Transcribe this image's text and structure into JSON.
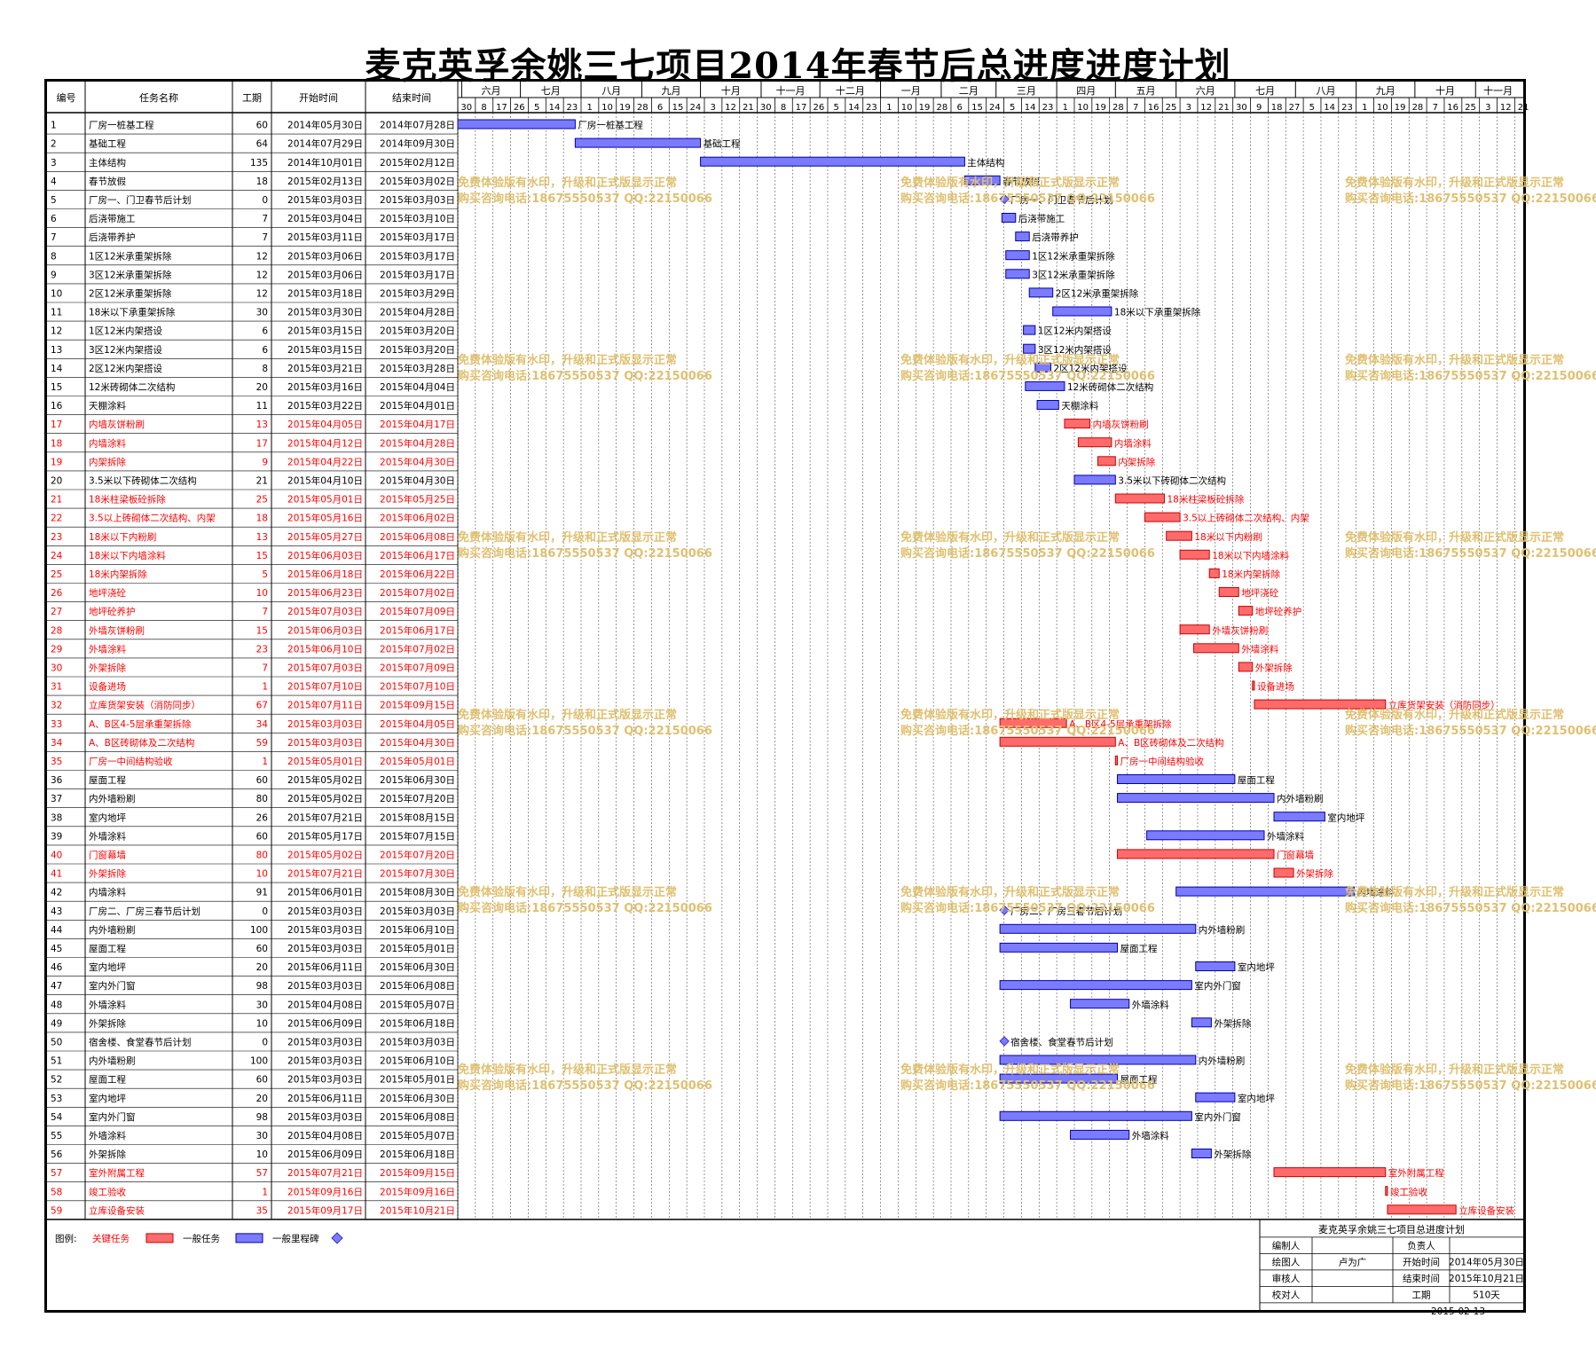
{
  "title": "麦克英孚余姚三七项目2014年春节后总进度进度计划",
  "columns": [
    "编号",
    "任务名称",
    "工期",
    "开始时间",
    "结束时间"
  ],
  "months": [
    "六月",
    "七月",
    "八月",
    "九月",
    "十月",
    "十一月",
    "十二月",
    "一月",
    "二月",
    "三月",
    "四月",
    "五月",
    "六月",
    "七月",
    "八月",
    "九月",
    "十月",
    "十一月"
  ],
  "days": [
    "30",
    "8",
    "17",
    "26",
    "5",
    "14",
    "23",
    "1",
    "10",
    "19",
    "28",
    "6",
    "15",
    "24",
    "3",
    "12",
    "21",
    "30",
    "8",
    "17",
    "26",
    "5",
    "14",
    "23",
    "1",
    "10",
    "19",
    "28",
    "6",
    "15",
    "24",
    "5",
    "14",
    "23",
    "1",
    "10",
    "19",
    "28",
    "7",
    "16",
    "25",
    "3",
    "12",
    "21",
    "30",
    "9",
    "18",
    "27",
    "5",
    "14",
    "23",
    "1",
    "10",
    "19",
    "28",
    "7",
    "16",
    "25",
    "3",
    "12",
    "21"
  ],
  "colors": {
    "critical": "#ff6b6b",
    "normal": "#7b7bff",
    "critical_text": "#ff0000",
    "normal_line": "#0000cc",
    "watermark": "#e0c070"
  },
  "watermark": [
    "免费体验版有水印，升级和正式版显示正常",
    "购买咨询电话:18675550537 QQ:22150066"
  ],
  "chart_data": {
    "type": "gantt",
    "x_range": [
      "2014-05-30",
      "2015-11-24"
    ],
    "tasks": [
      {
        "id": "1",
        "name": "厂房一桩基工程",
        "dur": "60",
        "start": "2014年05月30日",
        "end": "2014年07月28日",
        "s": "2014-05-30",
        "e": "2014-07-28",
        "crit": false,
        "label": "厂房一桩基工程"
      },
      {
        "id": "2",
        "name": "基础工程",
        "dur": "64",
        "start": "2014年07月29日",
        "end": "2014年09月30日",
        "s": "2014-07-29",
        "e": "2014-09-30",
        "crit": false,
        "label": "基础工程"
      },
      {
        "id": "3",
        "name": "主体结构",
        "dur": "135",
        "start": "2014年10月01日",
        "end": "2015年02月12日",
        "s": "2014-10-01",
        "e": "2015-02-12",
        "crit": false,
        "label": "主体结构"
      },
      {
        "id": "4",
        "name": "春节放假",
        "dur": "18",
        "start": "2015年02月13日",
        "end": "2015年03月02日",
        "s": "2015-02-13",
        "e": "2015-03-02",
        "crit": false,
        "label": "春节放假"
      },
      {
        "id": "5",
        "name": "厂房一、门卫春节后计划",
        "dur": "0",
        "start": "2015年03月03日",
        "end": "2015年03月03日",
        "s": "2015-03-03",
        "e": "2015-03-03",
        "crit": false,
        "label": "厂房一、门卫春节后计划"
      },
      {
        "id": "6",
        "name": "后浇带施工",
        "dur": "7",
        "start": "2015年03月04日",
        "end": "2015年03月10日",
        "s": "2015-03-04",
        "e": "2015-03-10",
        "crit": false,
        "label": "后浇带施工"
      },
      {
        "id": "7",
        "name": "后浇带养护",
        "dur": "7",
        "start": "2015年03月11日",
        "end": "2015年03月17日",
        "s": "2015-03-11",
        "e": "2015-03-17",
        "crit": false,
        "label": "后浇带养护"
      },
      {
        "id": "8",
        "name": "1区12米承重架拆除",
        "dur": "12",
        "start": "2015年03月06日",
        "end": "2015年03月17日",
        "s": "2015-03-06",
        "e": "2015-03-17",
        "crit": false,
        "label": "1区12米承重架拆除"
      },
      {
        "id": "9",
        "name": "3区12米承重架拆除",
        "dur": "12",
        "start": "2015年03月06日",
        "end": "2015年03月17日",
        "s": "2015-03-06",
        "e": "2015-03-17",
        "crit": false,
        "label": "3区12米承重架拆除"
      },
      {
        "id": "10",
        "name": "2区12米承重架拆除",
        "dur": "12",
        "start": "2015年03月18日",
        "end": "2015年03月29日",
        "s": "2015-03-18",
        "e": "2015-03-29",
        "crit": false,
        "label": "2区12米承重架拆除"
      },
      {
        "id": "11",
        "name": "18米以下承重架拆除",
        "dur": "30",
        "start": "2015年03月30日",
        "end": "2015年04月28日",
        "s": "2015-03-30",
        "e": "2015-04-28",
        "crit": false,
        "label": "18米以下承重架拆除"
      },
      {
        "id": "12",
        "name": "1区12米内架搭设",
        "dur": "6",
        "start": "2015年03月15日",
        "end": "2015年03月20日",
        "s": "2015-03-15",
        "e": "2015-03-20",
        "crit": false,
        "label": "1区12米内架搭设"
      },
      {
        "id": "13",
        "name": "3区12米内架搭设",
        "dur": "6",
        "start": "2015年03月15日",
        "end": "2015年03月20日",
        "s": "2015-03-15",
        "e": "2015-03-20",
        "crit": false,
        "label": "3区12米内架搭设"
      },
      {
        "id": "14",
        "name": "2区12米内架搭设",
        "dur": "8",
        "start": "2015年03月21日",
        "end": "2015年03月28日",
        "s": "2015-03-21",
        "e": "2015-03-28",
        "crit": false,
        "label": "2区12米内架搭设"
      },
      {
        "id": "15",
        "name": "12米砖砌体二次结构",
        "dur": "20",
        "start": "2015年03月16日",
        "end": "2015年04月04日",
        "s": "2015-03-16",
        "e": "2015-04-04",
        "crit": false,
        "label": "12米砖砌体二次结构"
      },
      {
        "id": "16",
        "name": "天棚涂料",
        "dur": "11",
        "start": "2015年03月22日",
        "end": "2015年04月01日",
        "s": "2015-03-22",
        "e": "2015-04-01",
        "crit": false,
        "label": "天棚涂料"
      },
      {
        "id": "17",
        "name": "内墙灰饼粉刷",
        "dur": "13",
        "start": "2015年04月05日",
        "end": "2015年04月17日",
        "s": "2015-04-05",
        "e": "2015-04-17",
        "crit": true,
        "label": "内墙灰饼粉刷"
      },
      {
        "id": "18",
        "name": "内墙涂料",
        "dur": "17",
        "start": "2015年04月12日",
        "end": "2015年04月28日",
        "s": "2015-04-12",
        "e": "2015-04-28",
        "crit": true,
        "label": "内墙涂料"
      },
      {
        "id": "19",
        "name": "内架拆除",
        "dur": "9",
        "start": "2015年04月22日",
        "end": "2015年04月30日",
        "s": "2015-04-22",
        "e": "2015-04-30",
        "crit": true,
        "label": "内架拆除"
      },
      {
        "id": "20",
        "name": "3.5米以下砖砌体二次结构",
        "dur": "21",
        "start": "2015年04月10日",
        "end": "2015年04月30日",
        "s": "2015-04-10",
        "e": "2015-04-30",
        "crit": false,
        "label": "3.5米以下砖砌体二次结构"
      },
      {
        "id": "21",
        "name": "18米柱梁板砼拆除",
        "dur": "25",
        "start": "2015年05月01日",
        "end": "2015年05月25日",
        "s": "2015-05-01",
        "e": "2015-05-25",
        "crit": true,
        "label": "18米柱梁板砼拆除"
      },
      {
        "id": "22",
        "name": "3.5以上砖砌体二次结构、内架",
        "dur": "18",
        "start": "2015年05月16日",
        "end": "2015年06月02日",
        "s": "2015-05-16",
        "e": "2015-06-02",
        "crit": true,
        "label": "3.5以上砖砌体二次结构、内架"
      },
      {
        "id": "23",
        "name": "18米以下内粉刷",
        "dur": "13",
        "start": "2015年05月27日",
        "end": "2015年06月08日",
        "s": "2015-05-27",
        "e": "2015-06-08",
        "crit": true,
        "label": "18米以下内粉刷"
      },
      {
        "id": "24",
        "name": "18米以下内墙涂料",
        "dur": "15",
        "start": "2015年06月03日",
        "end": "2015年06月17日",
        "s": "2015-06-03",
        "e": "2015-06-17",
        "crit": true,
        "label": "18米以下内墙涂料"
      },
      {
        "id": "25",
        "name": "18米内架拆除",
        "dur": "5",
        "start": "2015年06月18日",
        "end": "2015年06月22日",
        "s": "2015-06-18",
        "e": "2015-06-22",
        "crit": true,
        "label": "18米内架拆除"
      },
      {
        "id": "26",
        "name": "地坪浇砼",
        "dur": "10",
        "start": "2015年06月23日",
        "end": "2015年07月02日",
        "s": "2015-06-23",
        "e": "2015-07-02",
        "crit": true,
        "label": "地坪浇砼"
      },
      {
        "id": "27",
        "name": "地坪砼养护",
        "dur": "7",
        "start": "2015年07月03日",
        "end": "2015年07月09日",
        "s": "2015-07-03",
        "e": "2015-07-09",
        "crit": true,
        "label": "地坪砼养护"
      },
      {
        "id": "28",
        "name": "外墙灰饼粉刷",
        "dur": "15",
        "start": "2015年06月03日",
        "end": "2015年06月17日",
        "s": "2015-06-03",
        "e": "2015-06-17",
        "crit": true,
        "label": "外墙灰饼粉刷"
      },
      {
        "id": "29",
        "name": "外墙涂料",
        "dur": "23",
        "start": "2015年06月10日",
        "end": "2015年07月02日",
        "s": "2015-06-10",
        "e": "2015-07-02",
        "crit": true,
        "label": "外墙涂料"
      },
      {
        "id": "30",
        "name": "外架拆除",
        "dur": "7",
        "start": "2015年07月03日",
        "end": "2015年07月09日",
        "s": "2015-07-03",
        "e": "2015-07-09",
        "crit": true,
        "label": "外架拆除"
      },
      {
        "id": "31",
        "name": "设备进场",
        "dur": "1",
        "start": "2015年07月10日",
        "end": "2015年07月10日",
        "s": "2015-07-10",
        "e": "2015-07-10",
        "crit": true,
        "label": "设备进场"
      },
      {
        "id": "32",
        "name": "立库货架安装（消防同步）",
        "dur": "67",
        "start": "2015年07月11日",
        "end": "2015年09月15日",
        "s": "2015-07-11",
        "e": "2015-09-15",
        "crit": true,
        "label": "立库货架安装（消防同步）"
      },
      {
        "id": "33",
        "name": "A、B区4-5层承重架拆除",
        "dur": "34",
        "start": "2015年03月03日",
        "end": "2015年04月05日",
        "s": "2015-03-03",
        "e": "2015-04-05",
        "crit": true,
        "label": "A、B区4-5层承重架拆除"
      },
      {
        "id": "34",
        "name": "A、B区砖砌体及二次结构",
        "dur": "59",
        "start": "2015年03月03日",
        "end": "2015年04月30日",
        "s": "2015-03-03",
        "e": "2015-04-30",
        "crit": true,
        "label": "A、B区砖砌体及二次结构"
      },
      {
        "id": "35",
        "name": "厂房一中间结构验收",
        "dur": "1",
        "start": "2015年05月01日",
        "end": "2015年05月01日",
        "s": "2015-05-01",
        "e": "2015-05-01",
        "crit": true,
        "label": "厂房一中间结构验收"
      },
      {
        "id": "36",
        "name": "屋面工程",
        "dur": "60",
        "start": "2015年05月02日",
        "end": "2015年06月30日",
        "s": "2015-05-02",
        "e": "2015-06-30",
        "crit": false,
        "label": "屋面工程"
      },
      {
        "id": "37",
        "name": "内外墙粉刷",
        "dur": "80",
        "start": "2015年05月02日",
        "end": "2015年07月20日",
        "s": "2015-05-02",
        "e": "2015-07-20",
        "crit": false,
        "label": "内外墙粉刷"
      },
      {
        "id": "38",
        "name": "室内地坪",
        "dur": "26",
        "start": "2015年07月21日",
        "end": "2015年08月15日",
        "s": "2015-07-21",
        "e": "2015-08-15",
        "crit": false,
        "label": "室内地坪"
      },
      {
        "id": "39",
        "name": "外墙涂料",
        "dur": "60",
        "start": "2015年05月17日",
        "end": "2015年07月15日",
        "s": "2015-05-17",
        "e": "2015-07-15",
        "crit": false,
        "label": "外墙涂料"
      },
      {
        "id": "40",
        "name": "门窗幕墙",
        "dur": "80",
        "start": "2015年05月02日",
        "end": "2015年07月20日",
        "s": "2015-05-02",
        "e": "2015-07-20",
        "crit": true,
        "label": "门窗幕墙"
      },
      {
        "id": "41",
        "name": "外架拆除",
        "dur": "10",
        "start": "2015年07月21日",
        "end": "2015年07月30日",
        "s": "2015-07-21",
        "e": "2015-07-30",
        "crit": true,
        "label": "外架拆除"
      },
      {
        "id": "42",
        "name": "内墙涂料",
        "dur": "91",
        "start": "2015年06月01日",
        "end": "2015年08月30日",
        "s": "2015-06-01",
        "e": "2015-08-30",
        "crit": false,
        "label": "内墙涂料"
      },
      {
        "id": "43",
        "name": "厂房二、厂房三春节后计划",
        "dur": "0",
        "start": "2015年03月03日",
        "end": "2015年03月03日",
        "s": "2015-03-03",
        "e": "2015-03-03",
        "crit": false,
        "label": "厂房二、厂房三春节后计划"
      },
      {
        "id": "44",
        "name": "内外墙粉刷",
        "dur": "100",
        "start": "2015年03月03日",
        "end": "2015年06月10日",
        "s": "2015-03-03",
        "e": "2015-06-10",
        "crit": false,
        "label": "内外墙粉刷"
      },
      {
        "id": "45",
        "name": "屋面工程",
        "dur": "60",
        "start": "2015年03月03日",
        "end": "2015年05月01日",
        "s": "2015-03-03",
        "e": "2015-05-01",
        "crit": false,
        "label": "屋面工程"
      },
      {
        "id": "46",
        "name": "室内地坪",
        "dur": "20",
        "start": "2015年06月11日",
        "end": "2015年06月30日",
        "s": "2015-06-11",
        "e": "2015-06-30",
        "crit": false,
        "label": "室内地坪"
      },
      {
        "id": "47",
        "name": "室内外门窗",
        "dur": "98",
        "start": "2015年03月03日",
        "end": "2015年06月08日",
        "s": "2015-03-03",
        "e": "2015-06-08",
        "crit": false,
        "label": "室内外门窗"
      },
      {
        "id": "48",
        "name": "外墙涂料",
        "dur": "30",
        "start": "2015年04月08日",
        "end": "2015年05月07日",
        "s": "2015-04-08",
        "e": "2015-05-07",
        "crit": false,
        "label": "外墙涂料"
      },
      {
        "id": "49",
        "name": "外架拆除",
        "dur": "10",
        "start": "2015年06月09日",
        "end": "2015年06月18日",
        "s": "2015-06-09",
        "e": "2015-06-18",
        "crit": false,
        "label": "外架拆除"
      },
      {
        "id": "50",
        "name": "宿舍楼、食堂春节后计划",
        "dur": "0",
        "start": "2015年03月03日",
        "end": "2015年03月03日",
        "s": "2015-03-03",
        "e": "2015-03-03",
        "crit": false,
        "label": "宿舍楼、食堂春节后计划"
      },
      {
        "id": "51",
        "name": "内外墙粉刷",
        "dur": "100",
        "start": "2015年03月03日",
        "end": "2015年06月10日",
        "s": "2015-03-03",
        "e": "2015-06-10",
        "crit": false,
        "label": "内外墙粉刷"
      },
      {
        "id": "52",
        "name": "屋面工程",
        "dur": "60",
        "start": "2015年03月03日",
        "end": "2015年05月01日",
        "s": "2015-03-03",
        "e": "2015-05-01",
        "crit": false,
        "label": "屋面工程"
      },
      {
        "id": "53",
        "name": "室内地坪",
        "dur": "20",
        "start": "2015年06月11日",
        "end": "2015年06月30日",
        "s": "2015-06-11",
        "e": "2015-06-30",
        "crit": false,
        "label": "室内地坪"
      },
      {
        "id": "54",
        "name": "室内外门窗",
        "dur": "98",
        "start": "2015年03月03日",
        "end": "2015年06月08日",
        "s": "2015-03-03",
        "e": "2015-06-08",
        "crit": false,
        "label": "室内外门窗"
      },
      {
        "id": "55",
        "name": "外墙涂料",
        "dur": "30",
        "start": "2015年04月08日",
        "end": "2015年05月07日",
        "s": "2015-04-08",
        "e": "2015-05-07",
        "crit": false,
        "label": "外墙涂料"
      },
      {
        "id": "56",
        "name": "外架拆除",
        "dur": "10",
        "start": "2015年06月09日",
        "end": "2015年06月18日",
        "s": "2015-06-09",
        "e": "2015-06-18",
        "crit": false,
        "label": "外架拆除"
      },
      {
        "id": "57",
        "name": "室外附属工程",
        "dur": "57",
        "start": "2015年07月21日",
        "end": "2015年09月15日",
        "s": "2015-07-21",
        "e": "2015-09-15",
        "crit": true,
        "label": "室外附属工程"
      },
      {
        "id": "58",
        "name": "竣工验收",
        "dur": "1",
        "start": "2015年09月16日",
        "end": "2015年09月16日",
        "s": "2015-09-16",
        "e": "2015-09-16",
        "crit": true,
        "label": "竣工验收"
      },
      {
        "id": "59",
        "name": "立库设备安装",
        "dur": "35",
        "start": "2015年09月17日",
        "end": "2015年10月21日",
        "s": "2015-09-17",
        "e": "2015-10-21",
        "crit": true,
        "label": "立库设备安装"
      }
    ]
  },
  "legend": {
    "prefix": "图例:",
    "critical": "关键任务",
    "normal": "一般任务",
    "milestone": "一般里程碑"
  },
  "info": {
    "title": "麦克英孚余姚三七项目总进度计划",
    "r1": [
      "编制人",
      "",
      "负责人",
      ""
    ],
    "r2": [
      "绘图人",
      "卢为广",
      "开始时间",
      "2014年05月30日"
    ],
    "r3": [
      "审核人",
      "",
      "结束时间",
      "2015年10月21日"
    ],
    "r4": [
      "校对人",
      "",
      "工期",
      "510天"
    ],
    "date": "2015-02-13"
  }
}
